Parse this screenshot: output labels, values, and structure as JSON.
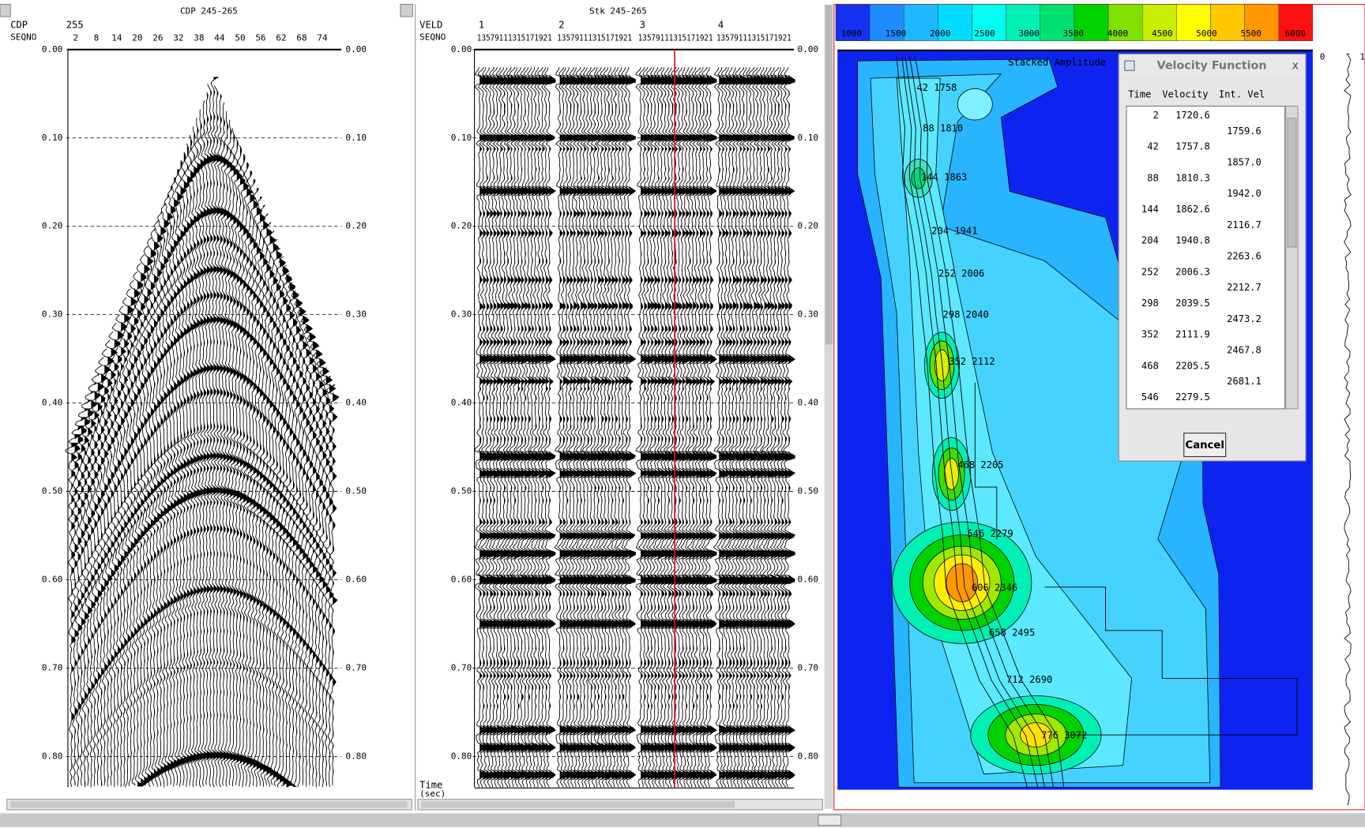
{
  "left_panel": {
    "title": "CDP 245-265",
    "axis_labels": [
      "CDP",
      "SEQNO"
    ],
    "cdp": "255",
    "trace_labels": [
      "2",
      "8",
      "14",
      "20",
      "26",
      "32",
      "38",
      "44",
      "50",
      "56",
      "62",
      "68",
      "74"
    ],
    "time_ticks": [
      "0.00",
      "0.10",
      "0.20",
      "0.30",
      "0.40",
      "0.50",
      "0.60",
      "0.70",
      "0.80"
    ]
  },
  "middle_panel": {
    "title": "Stk 245-265",
    "axis_labels": [
      "VELD",
      "SEQNO"
    ],
    "groups": [
      "1",
      "2",
      "3",
      "4"
    ],
    "seqno_labels": [
      "13579111315171921",
      "13579111315171921",
      "13579111315171921",
      "13579111315171921"
    ],
    "time_label": [
      "Time",
      "(sec)"
    ],
    "time_ticks": [
      "0.00",
      "0.10",
      "0.20",
      "0.30",
      "0.40",
      "0.50",
      "0.60",
      "0.70",
      "0.80"
    ]
  },
  "velocity_panel": {
    "colorbar_labels": [
      "1000",
      "1500",
      "2000",
      "2500",
      "3000",
      "3500",
      "4000",
      "4500",
      "5000",
      "5500",
      "6000"
    ],
    "subtitle": "Stacked Amplitude",
    "picks": [
      "42 1758",
      "88 1810",
      "144 1863",
      "204 1941",
      "252 2006",
      "298 2040",
      "352 2112",
      "468 2205",
      "546 2279",
      "606 2346",
      "658 2495",
      "712 2690",
      "776 3072"
    ],
    "side_labels": [
      "0",
      "1"
    ]
  },
  "dialog": {
    "title": "Velocity Function",
    "close": "x",
    "columns": [
      "Time",
      "Velocity",
      "Int. Vel"
    ],
    "rows": [
      [
        "2",
        "1720.6"
      ],
      [
        "42",
        "1757.8"
      ],
      [
        "88",
        "1810.3"
      ],
      [
        "144",
        "1862.6"
      ],
      [
        "204",
        "1940.8"
      ],
      [
        "252",
        "2006.3"
      ],
      [
        "298",
        "2039.5"
      ],
      [
        "352",
        "2111.9"
      ],
      [
        "468",
        "2205.5"
      ],
      [
        "546",
        "2279.5"
      ]
    ],
    "interval": [
      "1759.6",
      "1857.0",
      "1942.0",
      "2116.7",
      "2263.6",
      "2212.7",
      "2473.2",
      "2467.8",
      "2681.1"
    ],
    "button": "Cancel"
  }
}
